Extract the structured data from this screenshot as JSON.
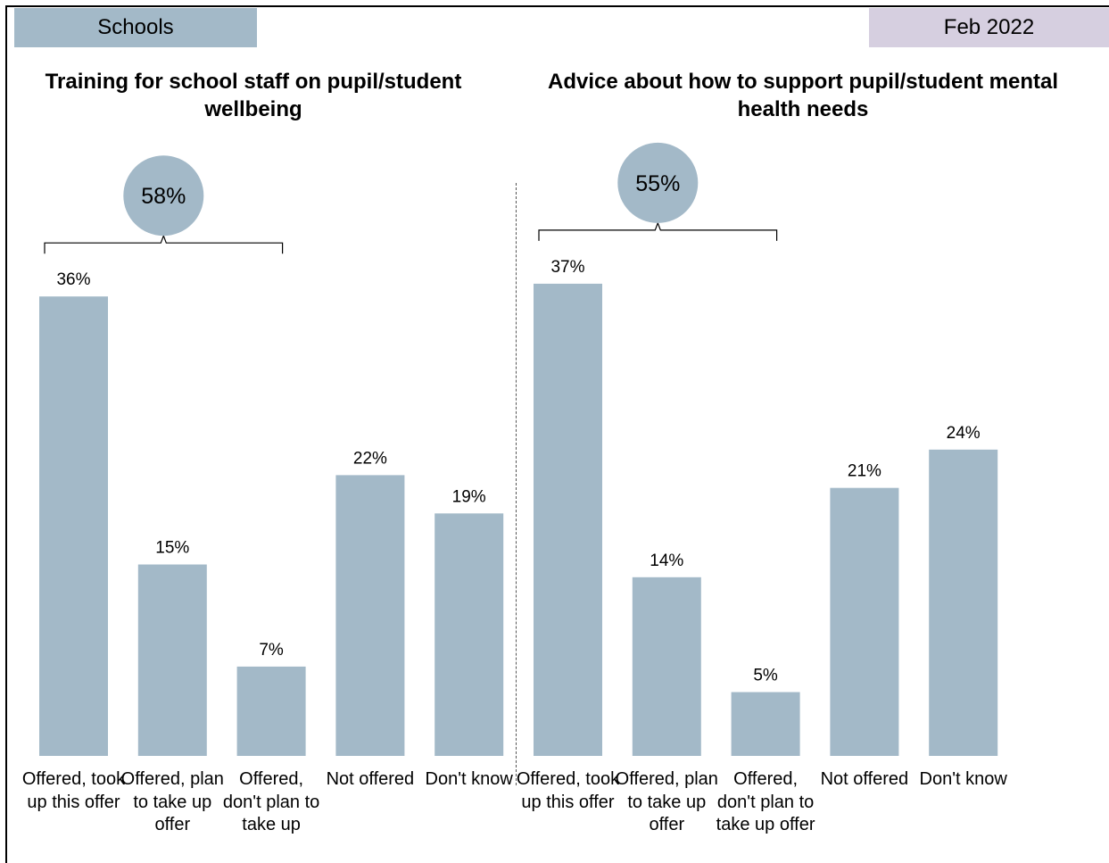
{
  "header": {
    "segment_label": "Schools",
    "date_label": "Feb 2022"
  },
  "chart_data": [
    {
      "type": "bar",
      "title": "Training for school staff on pupil/student wellbeing",
      "categories": [
        "Offered, took up this offer",
        "Offered, plan to take up offer",
        "Offered, don't plan to take up",
        "Not offered",
        "Don't know"
      ],
      "values": [
        36,
        15,
        7,
        22,
        19
      ],
      "value_labels": [
        "36%",
        "15%",
        "7%",
        "22%",
        "19%"
      ],
      "ylim": [
        0,
        36
      ],
      "color": "#a3b9c8",
      "bracket": {
        "spans_categories": [
          0,
          2
        ],
        "value": 58,
        "label": "58%"
      }
    },
    {
      "type": "bar",
      "title": "Advice about how to support pupil/student mental health needs",
      "categories": [
        "Offered, took up this offer",
        "Offered, plan to take up offer",
        "Offered, don't plan to take up offer",
        "Not offered",
        "Don't know"
      ],
      "values": [
        37,
        14,
        5,
        21,
        24
      ],
      "value_labels": [
        "37%",
        "14%",
        "5%",
        "21%",
        "24%"
      ],
      "ylim": [
        0,
        37
      ],
      "color": "#a3b9c8",
      "bracket": {
        "spans_categories": [
          0,
          2
        ],
        "value": 55,
        "label": "55%"
      }
    }
  ]
}
